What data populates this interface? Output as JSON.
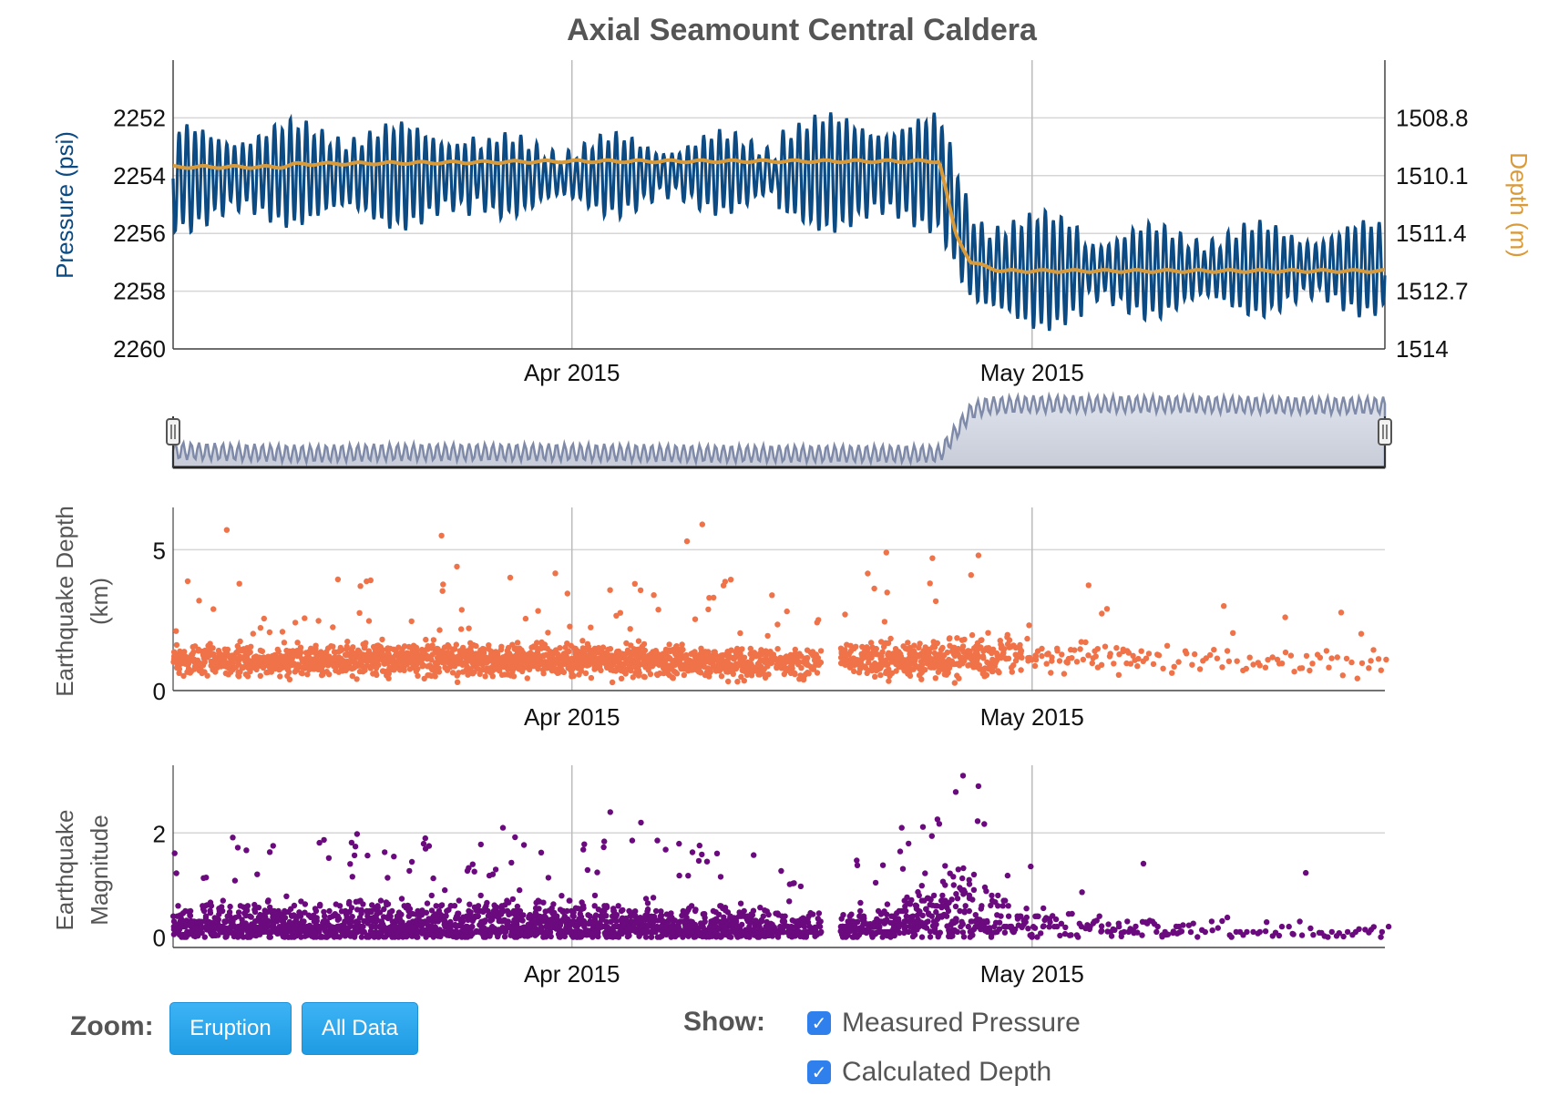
{
  "page": {
    "title": "Axial Seamount Central Caldera"
  },
  "colors": {
    "pressure": "#0b4a82",
    "depth": "#d99a3a",
    "eq_depth": "#f07248",
    "eq_magnitude": "#6b0a7e",
    "navigator_fill": "#c7ccd8",
    "navigator_line": "#7e8aa8",
    "grid": "#d6d6d6",
    "button": "#27a3eb"
  },
  "controls": {
    "zoom_label": "Zoom:",
    "zoom_buttons": [
      {
        "label": "Eruption"
      },
      {
        "label": "All Data"
      }
    ],
    "show_label": "Show:",
    "show_options": [
      {
        "label": "Measured Pressure",
        "checked": true
      },
      {
        "label": "Calculated Depth",
        "checked": true
      }
    ]
  },
  "chart_data": [
    {
      "name": "pressure-depth",
      "type": "line",
      "title": "Axial Seamount Central Caldera",
      "ylabel": "Pressure (psi)",
      "y2label": "Depth (m)",
      "x_ticks": [
        "Apr 2015",
        "May 2015"
      ],
      "x_range": [
        "2015-03-06",
        "2015-05-24"
      ],
      "ylim": [
        2250,
        2260
      ],
      "y_reversed": true,
      "y_ticks": [
        2252,
        2254,
        2256,
        2258,
        2260
      ],
      "y2lim": [
        1507.5,
        1514
      ],
      "y2_ticks": [
        "1508.8",
        "1510.1",
        "1511.4",
        "1512.7",
        "1514"
      ],
      "grid": true,
      "series": [
        {
          "name": "Measured Pressure",
          "style": "tidal oscillation",
          "points": [
            [
              "2015-03-06",
              2254.1
            ],
            [
              "2015-03-10",
              2254.0
            ],
            [
              "2015-03-15",
              2253.9
            ],
            [
              "2015-03-20",
              2254.0
            ],
            [
              "2015-03-25",
              2254.0
            ],
            [
              "2015-04-01",
              2254.0
            ],
            [
              "2015-04-10",
              2253.9
            ],
            [
              "2015-04-15",
              2253.9
            ],
            [
              "2015-04-20",
              2253.9
            ],
            [
              "2015-04-25",
              2253.9
            ],
            [
              "2015-04-27",
              2256.8
            ],
            [
              "2015-04-28",
              2257.2
            ],
            [
              "2015-05-01",
              2257.3
            ],
            [
              "2015-05-10",
              2257.3
            ],
            [
              "2015-05-20",
              2257.2
            ],
            [
              "2015-05-24",
              2257.2
            ]
          ],
          "amplitude_psi": [
            1.4,
            1.0,
            1.6,
            1.2
          ]
        },
        {
          "name": "Calculated Depth",
          "points": [
            [
              "2015-03-06",
              2253.7
            ],
            [
              "2015-03-13",
              2253.7
            ],
            [
              "2015-03-14",
              2253.6
            ],
            [
              "2015-04-01",
              2253.5
            ],
            [
              "2015-04-15",
              2253.5
            ],
            [
              "2015-04-25",
              2253.5
            ],
            [
              "2015-04-25",
              2253.6
            ],
            [
              "2015-04-26",
              2256.0
            ],
            [
              "2015-04-27",
              2257.0
            ],
            [
              "2015-04-29",
              2257.3
            ],
            [
              "2015-05-10",
              2257.3
            ],
            [
              "2015-05-24",
              2257.3
            ]
          ]
        }
      ]
    },
    {
      "name": "navigator",
      "type": "area",
      "x_range": [
        "2015-03-06",
        "2015-05-24"
      ]
    },
    {
      "name": "earthquake-depth",
      "type": "scatter",
      "ylabel": "Earthquake Depth (km)",
      "ylim": [
        0,
        6.5
      ],
      "y_ticks": [
        0,
        5
      ],
      "x_ticks": [
        "Apr 2015",
        "May 2015"
      ],
      "x_range": [
        "2015-03-06",
        "2015-05-24"
      ],
      "grid": true,
      "series": [
        {
          "name": "Earthquake Depth",
          "density_profile": [
            [
              "2015-03-06",
              1.1,
              0.5,
              160
            ],
            [
              "2015-03-12",
              1.0,
              0.5,
              180
            ],
            [
              "2015-03-20",
              1.1,
              0.55,
              190
            ],
            [
              "2015-04-01",
              1.1,
              0.5,
              200
            ],
            [
              "2015-04-10",
              1.0,
              0.5,
              180
            ],
            [
              "2015-04-16",
              1.0,
              0.45,
              130
            ],
            [
              "2015-04-22",
              1.1,
              0.55,
              160
            ],
            [
              "2015-04-27",
              1.2,
              0.7,
              150
            ],
            [
              "2015-05-01",
              1.2,
              0.5,
              40
            ],
            [
              "2015-05-10",
              1.1,
              0.45,
              20
            ],
            [
              "2015-05-24",
              1.0,
              0.45,
              14
            ]
          ],
          "outliers": [
            [
              "2015-03-09",
              5.7
            ],
            [
              "2015-03-23",
              5.5
            ],
            [
              "2015-03-24",
              4.4
            ],
            [
              "2015-04-09",
              5.9
            ],
            [
              "2015-04-08",
              5.3
            ],
            [
              "2015-04-21",
              4.9
            ],
            [
              "2015-04-24",
              4.7
            ],
            [
              "2015-04-27",
              4.8
            ],
            [
              "2015-05-13",
              3.0
            ],
            [
              "2015-05-17",
              2.6
            ]
          ]
        }
      ]
    },
    {
      "name": "earthquake-magnitude",
      "type": "scatter",
      "ylabel": "Earthquake Magnitude",
      "ylim": [
        -0.2,
        3.3
      ],
      "y_ticks": [
        0,
        2
      ],
      "x_ticks": [
        "Apr 2015",
        "May 2015"
      ],
      "x_range": [
        "2015-03-06",
        "2015-05-24"
      ],
      "grid": true,
      "series": [
        {
          "name": "Earthquake Magnitude",
          "density_profile": [
            [
              "2015-03-06",
              0.6,
              160
            ],
            [
              "2015-03-20",
              0.7,
              190
            ],
            [
              "2015-04-10",
              0.6,
              180
            ],
            [
              "2015-04-16",
              0.5,
              120
            ],
            [
              "2015-04-22",
              0.6,
              160
            ],
            [
              "2015-04-26",
              1.5,
              140
            ],
            [
              "2015-04-29",
              0.8,
              80
            ],
            [
              "2015-05-03",
              0.4,
              30
            ],
            [
              "2015-05-24",
              0.3,
              14
            ]
          ],
          "outliers": [
            [
              "2015-03-27",
              2.1
            ],
            [
              "2015-04-03",
              2.4
            ],
            [
              "2015-04-05",
              2.2
            ],
            [
              "2015-04-22",
              2.1
            ],
            [
              "2015-04-26",
              3.1
            ],
            [
              "2015-04-27",
              2.9
            ]
          ]
        }
      ]
    }
  ]
}
